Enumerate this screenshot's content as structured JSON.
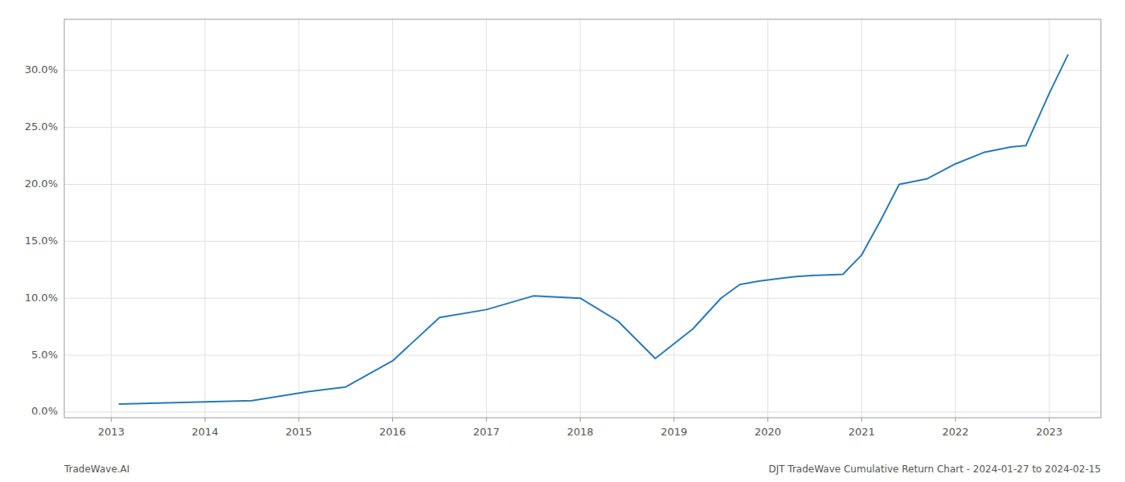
{
  "chart_data": {
    "type": "line",
    "x": [
      2013.08,
      2014.0,
      2014.5,
      2015.1,
      2015.5,
      2016.0,
      2016.5,
      2017.0,
      2017.5,
      2018.0,
      2018.4,
      2018.8,
      2019.2,
      2019.5,
      2019.7,
      2019.9,
      2020.1,
      2020.3,
      2020.5,
      2020.8,
      2021.0,
      2021.2,
      2021.4,
      2021.7,
      2022.0,
      2022.3,
      2022.6,
      2022.75,
      2023.0,
      2023.2
    ],
    "values": [
      0.007,
      0.009,
      0.01,
      0.018,
      0.022,
      0.045,
      0.083,
      0.09,
      0.102,
      0.1,
      0.08,
      0.047,
      0.073,
      0.1,
      0.112,
      0.115,
      0.117,
      0.119,
      0.12,
      0.121,
      0.138,
      0.168,
      0.2,
      0.205,
      0.218,
      0.228,
      0.233,
      0.234,
      0.28,
      0.314
    ],
    "color": "#2979b8",
    "xlim": [
      2012.5,
      2023.55
    ],
    "xticks": [
      2013,
      2014,
      2015,
      2016,
      2017,
      2018,
      2019,
      2020,
      2021,
      2022,
      2023
    ],
    "ylim": [
      -0.005,
      0.345
    ],
    "yticks": [
      {
        "value": 0.0,
        "label": "0.0%"
      },
      {
        "value": 0.05,
        "label": "5.0%"
      },
      {
        "value": 0.1,
        "label": "10.0%"
      },
      {
        "value": 0.15,
        "label": "15.0%"
      },
      {
        "value": 0.2,
        "label": "20.0%"
      },
      {
        "value": 0.25,
        "label": "25.0%"
      },
      {
        "value": 0.3,
        "label": "30.0%"
      }
    ],
    "grid": true,
    "annotations": [
      "TradeWave.AI",
      "DJT TradeWave Cumulative Return Chart - 2024-01-27 to 2024-02-15"
    ]
  }
}
